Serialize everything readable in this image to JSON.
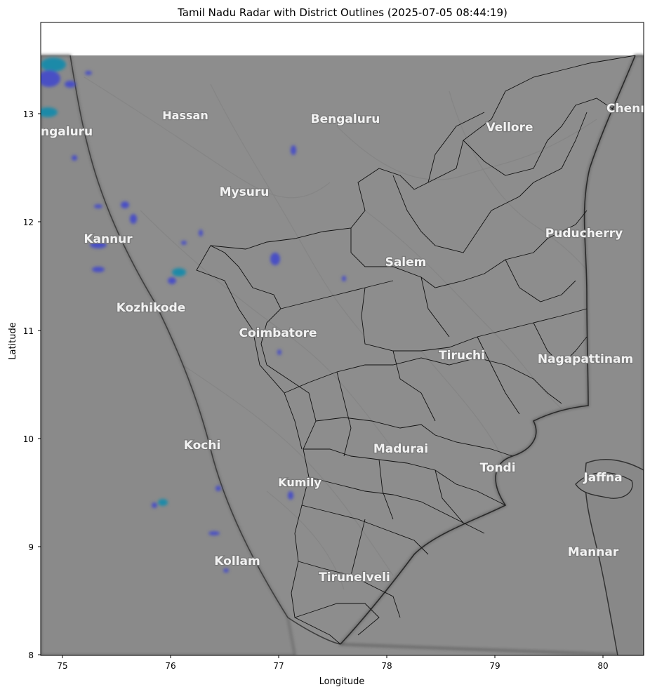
{
  "title": "Tamil Nadu Radar with District Outlines (2025-07-05 08:44:19)",
  "xlabel": "Longitude",
  "ylabel": "Latitude",
  "x_ticks": [
    "75",
    "76",
    "77",
    "78",
    "79",
    "80"
  ],
  "y_ticks": [
    "8",
    "9",
    "10",
    "11",
    "12",
    "13"
  ],
  "map": {
    "xlim": [
      74.8,
      80.4
    ],
    "ylim": [
      7.97,
      13.85
    ],
    "image_top_lat": 13.55,
    "background_color": "#8d8d8d",
    "radar_colors": [
      "#4a4fc4",
      "#1f8aa8",
      "#3a5fd0"
    ],
    "city_labels": [
      {
        "name": "Hassan",
        "lon": 76.17,
        "lat": 12.97
      },
      {
        "name": "Bengaluru",
        "lon": 77.6,
        "lat": 12.93
      },
      {
        "name": "ngaluru",
        "lon": 74.97,
        "lat": 12.8
      },
      {
        "name": "Vellore",
        "lon": 79.14,
        "lat": 12.85
      },
      {
        "name": "Chenr",
        "lon": 80.27,
        "lat": 13.06
      },
      {
        "name": "Mysuru",
        "lon": 76.65,
        "lat": 12.26
      },
      {
        "name": "Kannur",
        "lon": 75.42,
        "lat": 11.82
      },
      {
        "name": "Puducherry",
        "lon": 79.82,
        "lat": 11.87
      },
      {
        "name": "Salem",
        "lon": 78.15,
        "lat": 11.61
      },
      {
        "name": "Kozhikode",
        "lon": 75.81,
        "lat": 11.19
      },
      {
        "name": "Coimbatore",
        "lon": 76.98,
        "lat": 10.96
      },
      {
        "name": "Tiruchi",
        "lon": 78.69,
        "lat": 10.75
      },
      {
        "name": "Nagapattinam",
        "lon": 79.84,
        "lat": 10.72
      },
      {
        "name": "Kochi",
        "lon": 76.33,
        "lat": 9.92
      },
      {
        "name": "Madurai",
        "lon": 78.13,
        "lat": 9.88
      },
      {
        "name": "Tondi",
        "lon": 79.02,
        "lat": 9.7
      },
      {
        "name": "Jaffna",
        "lon": 80.0,
        "lat": 9.63
      },
      {
        "name": "Kumily",
        "lon": 77.2,
        "lat": 9.57
      },
      {
        "name": "Mannar",
        "lon": 79.95,
        "lat": 8.93
      },
      {
        "name": "Kollam",
        "lon": 76.59,
        "lat": 8.84
      },
      {
        "name": "Tirunelveli",
        "lon": 77.7,
        "lat": 8.69
      }
    ]
  }
}
